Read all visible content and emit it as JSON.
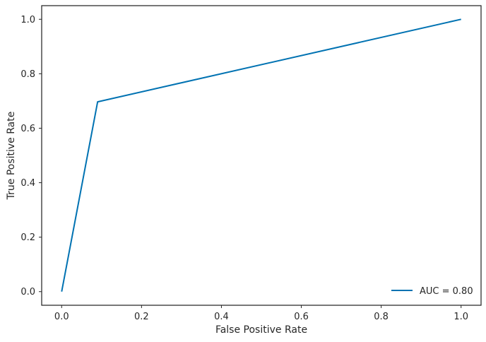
{
  "chart_data": {
    "type": "line",
    "title": "",
    "xlabel": "False Positive Rate",
    "ylabel": "True Positive Rate",
    "xlim": [
      -0.05,
      1.05
    ],
    "ylim": [
      -0.05,
      1.05
    ],
    "xticks": [
      0.0,
      0.2,
      0.4,
      0.6,
      0.8,
      1.0
    ],
    "xtick_labels": [
      "0.0",
      "0.2",
      "0.4",
      "0.6",
      "0.8",
      "1.0"
    ],
    "yticks": [
      0.0,
      0.2,
      0.4,
      0.6,
      0.8,
      1.0
    ],
    "ytick_labels": [
      "0.0",
      "0.2",
      "0.4",
      "0.6",
      "0.8",
      "1.0"
    ],
    "grid": false,
    "legend_position": "lower-right",
    "series": [
      {
        "name": "AUC = 0.80",
        "color": "#0072b2",
        "x": [
          0.0,
          0.09,
          1.0
        ],
        "y": [
          0.0,
          0.697,
          1.0
        ]
      }
    ]
  }
}
